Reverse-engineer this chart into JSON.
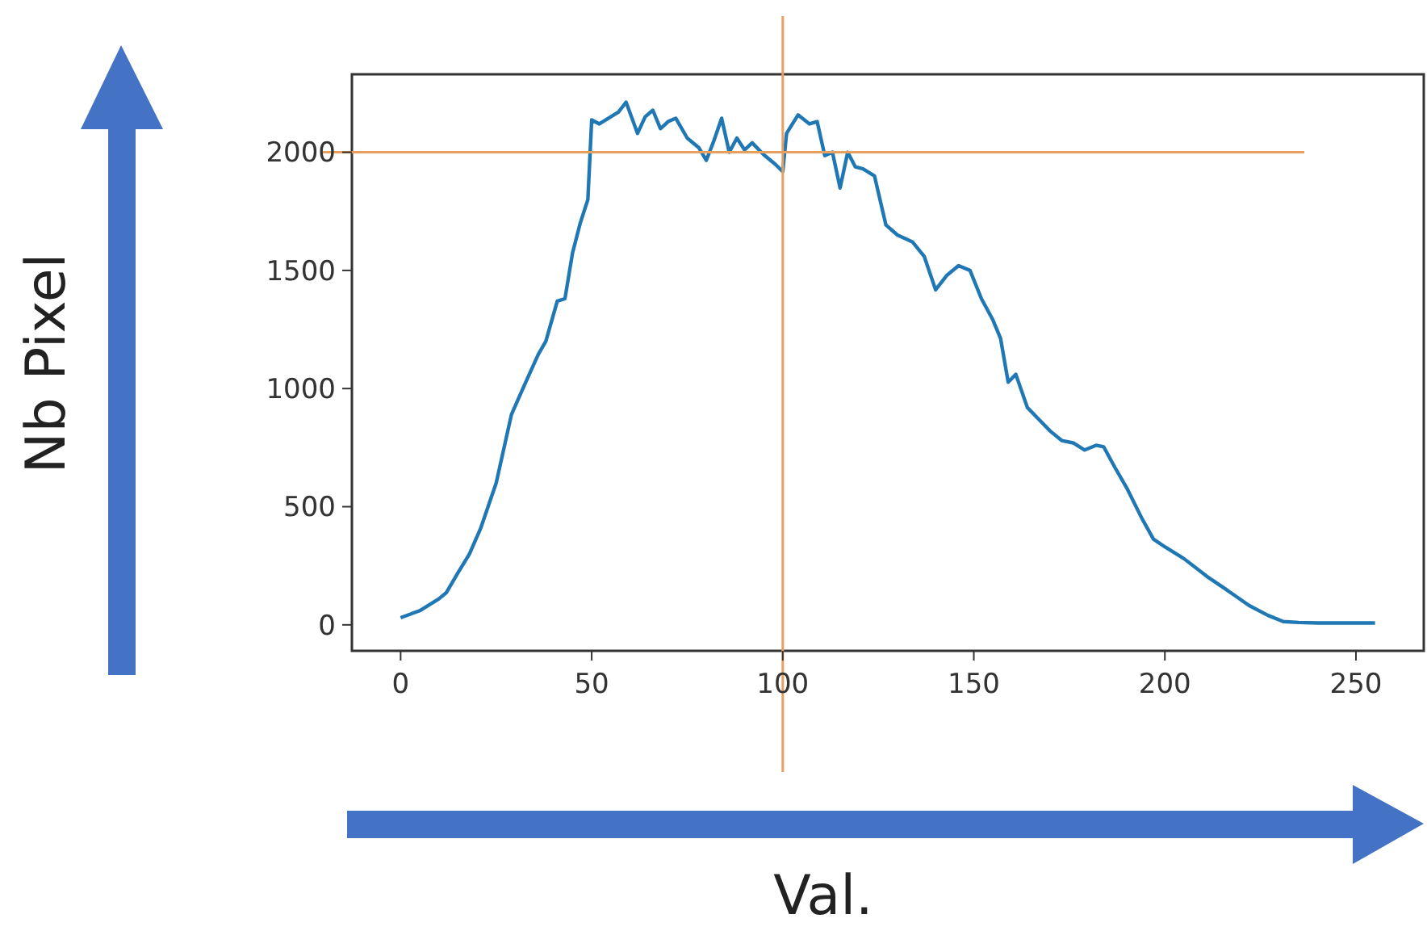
{
  "chart_data": {
    "type": "line",
    "xlabel": "Val.",
    "ylabel": "Nb Pixel",
    "x": [
      0,
      5,
      10,
      12,
      15,
      18,
      21,
      25,
      29,
      32,
      36,
      38,
      41,
      43,
      45,
      47,
      49,
      50,
      52,
      55,
      57,
      59,
      62,
      64,
      66,
      68,
      70,
      72,
      75,
      78,
      80,
      82,
      84,
      86,
      88,
      90,
      92,
      95,
      98,
      100,
      101,
      104,
      107,
      109,
      111,
      113,
      115,
      117,
      119,
      121,
      124,
      127,
      130,
      134,
      137,
      140,
      143,
      146,
      149,
      152,
      155,
      157,
      159,
      161,
      164,
      167,
      170,
      173,
      176,
      179,
      182,
      184,
      187,
      190,
      194,
      197,
      200,
      205,
      211,
      216,
      222,
      227,
      231,
      235,
      240,
      245,
      250,
      255
    ],
    "series": [
      {
        "color": "#1f77b4",
        "values": [
          30,
          60,
          110,
          137,
          220,
          300,
          411,
          600,
          890,
          1000,
          1144,
          1200,
          1370,
          1380,
          1575,
          1700,
          1800,
          2137,
          2120,
          2150,
          2170,
          2212,
          2080,
          2150,
          2178,
          2100,
          2130,
          2144,
          2060,
          2020,
          1966,
          2050,
          2144,
          2000,
          2060,
          2010,
          2040,
          1990,
          1950,
          1918,
          2080,
          2158,
          2120,
          2130,
          1986,
          2000,
          1849,
          2000,
          1938,
          1930,
          1900,
          1692,
          1650,
          1620,
          1560,
          1418,
          1480,
          1520,
          1500,
          1380,
          1290,
          1212,
          1027,
          1060,
          920,
          870,
          820,
          780,
          770,
          740,
          760,
          753,
          664,
          580,
          450,
          363,
          330,
          280,
          205,
          150,
          82,
          40,
          14,
          10,
          8,
          8,
          8,
          8
        ]
      }
    ],
    "xlim": [
      -12.75,
      267.75
    ],
    "ylim": [
      -110,
      2330
    ],
    "xticks": [
      0,
      50,
      100,
      150,
      200,
      250
    ],
    "yticks": [
      0,
      500,
      1000,
      1500,
      2000
    ],
    "ref_lines": [
      {
        "axis": "x",
        "value": 100,
        "color": "#e8a060"
      },
      {
        "axis": "y",
        "value": 2000,
        "color": "#e8a060"
      }
    ]
  }
}
